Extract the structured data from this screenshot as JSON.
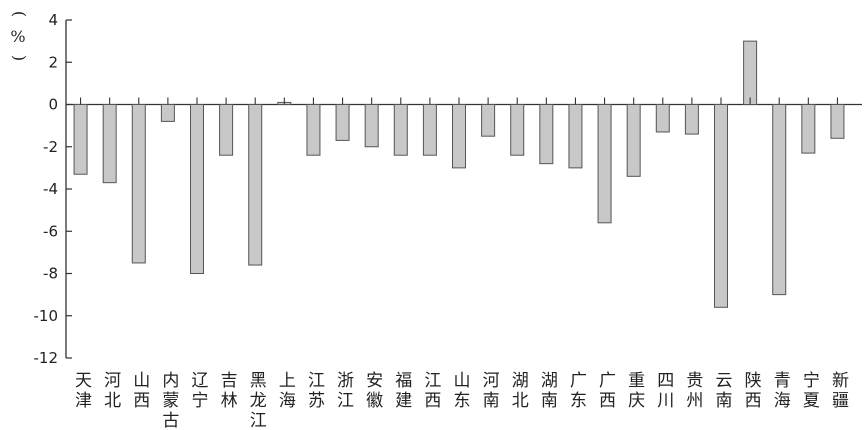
{
  "chart_data": {
    "type": "bar",
    "unit_label": "%",
    "unit_paren_top": "(",
    "unit_paren_bottom": ")",
    "categories": [
      [
        "天",
        "津"
      ],
      [
        "河",
        "北"
      ],
      [
        "山",
        "西"
      ],
      [
        "内",
        "蒙",
        "古"
      ],
      [
        "辽",
        "宁"
      ],
      [
        "吉",
        "林"
      ],
      [
        "黑",
        "龙",
        "江"
      ],
      [
        "上",
        "海"
      ],
      [
        "江",
        "苏"
      ],
      [
        "浙",
        "江"
      ],
      [
        "安",
        "徽"
      ],
      [
        "福",
        "建"
      ],
      [
        "江",
        "西"
      ],
      [
        "山",
        "东"
      ],
      [
        "河",
        "南"
      ],
      [
        "湖",
        "北"
      ],
      [
        "湖",
        "南"
      ],
      [
        "广",
        "东"
      ],
      [
        "广",
        "西"
      ],
      [
        "重",
        "庆"
      ],
      [
        "四",
        "川"
      ],
      [
        "贵",
        "州"
      ],
      [
        "云",
        "南"
      ],
      [
        "陕",
        "西"
      ],
      [
        "青",
        "海"
      ],
      [
        "宁",
        "夏"
      ],
      [
        "新",
        "疆"
      ]
    ],
    "values": [
      -3.3,
      -3.7,
      -7.5,
      -0.8,
      -8.0,
      -2.4,
      -7.6,
      0.1,
      -2.4,
      -1.7,
      -2.0,
      -2.4,
      -2.4,
      -3.0,
      -1.5,
      -2.4,
      -2.8,
      -3.0,
      -5.6,
      -3.4,
      -1.3,
      -1.4,
      -9.6,
      3.0,
      -9.0,
      -2.3,
      -1.6
    ],
    "ylim": [
      -12,
      4
    ],
    "yticks": [
      "-12",
      "-10",
      "-8",
      "-6",
      "-4",
      "-2",
      "0",
      "2",
      "4"
    ],
    "colors": {
      "bar_fill": "#c8c8c8",
      "bar_stroke": "#555555",
      "axis": "#333333"
    }
  }
}
